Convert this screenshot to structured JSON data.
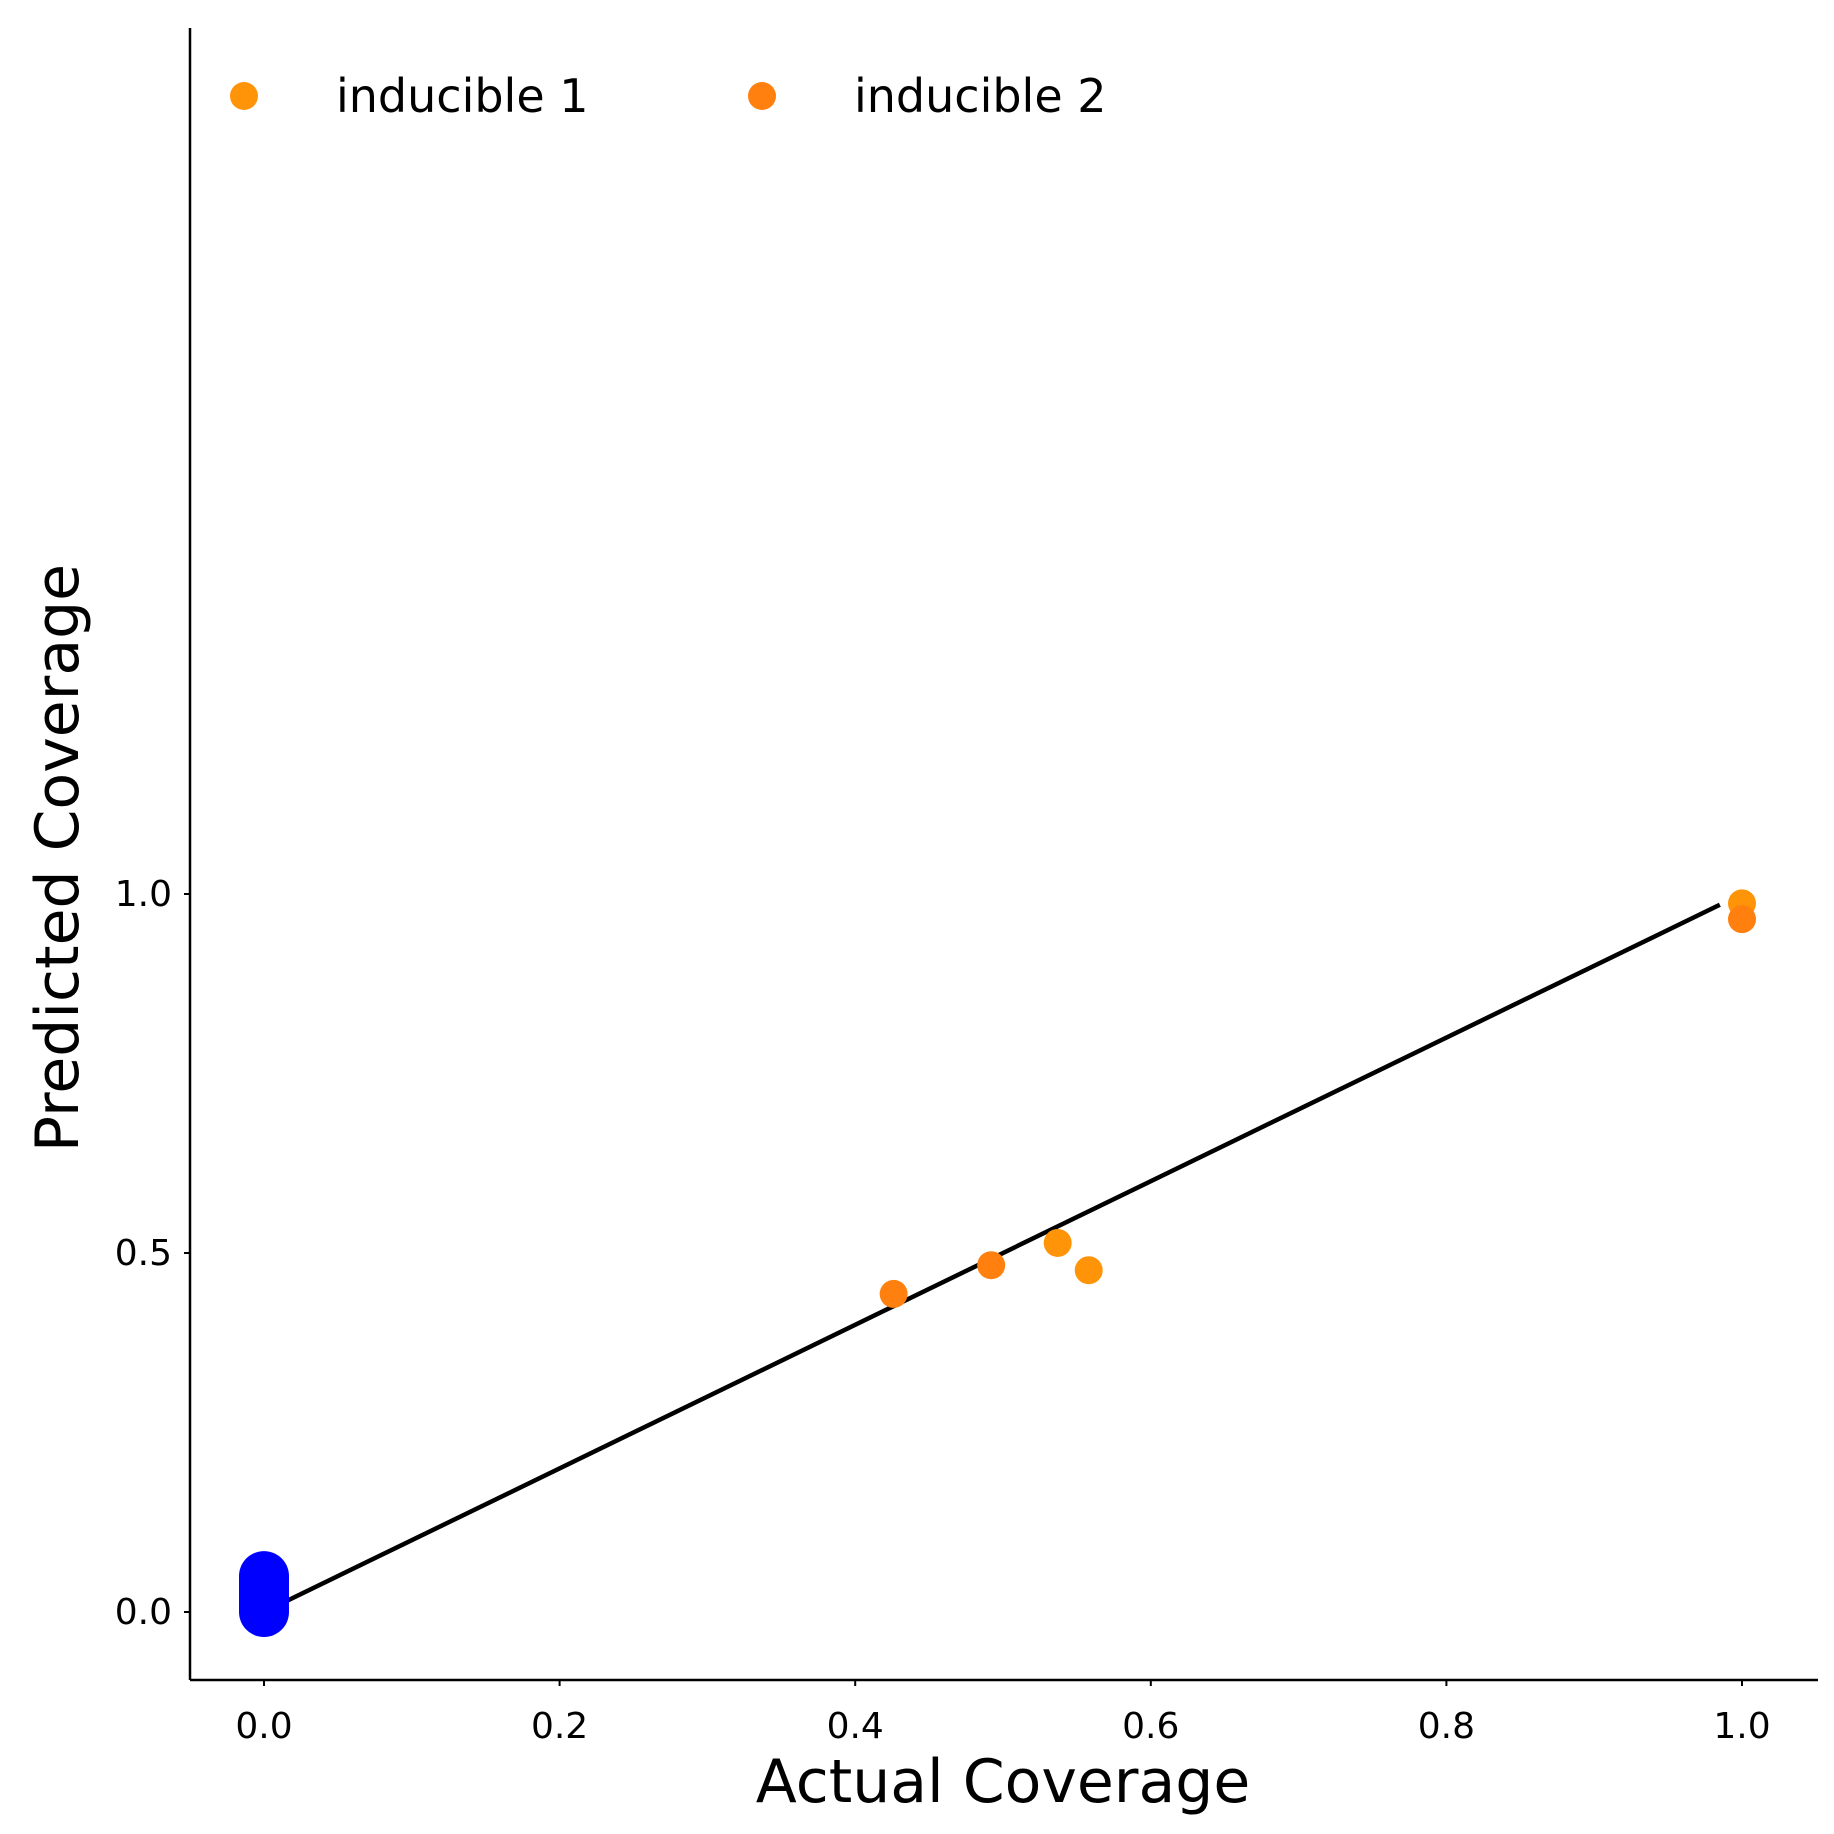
{
  "chart_data": {
    "type": "scatter",
    "xlabel": "Actual Coverage",
    "ylabel": "Predicted Coverage",
    "xlim": [
      -0.05,
      1.05
    ],
    "ylim": [
      -0.05,
      1.09
    ],
    "x_ticks": [
      "0.0",
      "0.2",
      "0.4",
      "0.6",
      "0.8",
      "1.0"
    ],
    "y_ticks": [
      "0.0",
      "0.5",
      "1.0"
    ],
    "legend_position": "top-left",
    "grid": false,
    "reference_line": {
      "x": [
        0.0,
        0.985
      ],
      "y": [
        0.0,
        0.985
      ],
      "color": "#000000"
    },
    "series": [
      {
        "name": "inducible 1",
        "color": "#ff9408",
        "points": [
          [
            0.537,
            0.514
          ],
          [
            0.558,
            0.476
          ],
          [
            1.0,
            0.987
          ]
        ]
      },
      {
        "name": "inducible 2",
        "color": "#ff800e",
        "points": [
          [
            0.426,
            0.443
          ],
          [
            0.492,
            0.483
          ],
          [
            1.0,
            0.965
          ]
        ]
      },
      {
        "color": "#0000ff",
        "points": [
          [
            0.0,
            0.0
          ],
          [
            0.0,
            0.005
          ],
          [
            0.0,
            0.01
          ],
          [
            0.0,
            0.015
          ],
          [
            0.0,
            0.02
          ],
          [
            0.0,
            0.025
          ],
          [
            0.0,
            0.03
          ],
          [
            0.0,
            0.035
          ],
          [
            0.0,
            0.04
          ],
          [
            0.0,
            0.045
          ],
          [
            0.0,
            0.05
          ]
        ]
      }
    ]
  }
}
